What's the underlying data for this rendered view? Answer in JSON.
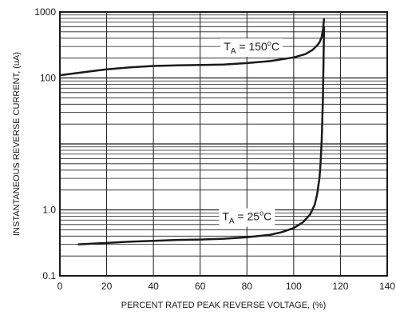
{
  "chart_data": {
    "type": "line",
    "xlabel": "PERCENT RATED PEAK REVERSE VOLTAGE, (%)",
    "ylabel": "INSTANTANEOUS REVERSE CURRENT, (uA)",
    "xlim": [
      0,
      140
    ],
    "ylim": [
      0.1,
      1000
    ],
    "y_scale": "log",
    "grid": true,
    "x_ticks": [
      0,
      20,
      40,
      60,
      80,
      100,
      120,
      140
    ],
    "x_tick_labels": [
      "0",
      "20",
      "40",
      "60",
      "80",
      "100",
      "120",
      "140"
    ],
    "y_ticks": [
      0.1,
      1.0,
      100,
      1000
    ],
    "y_tick_labels": [
      "0.1",
      "1.0",
      "100",
      "1000"
    ],
    "series": [
      {
        "color": "#1a1a1a",
        "x": [
          0,
          10,
          20,
          30,
          40,
          50,
          60,
          70,
          80,
          90,
          100,
          105,
          108,
          110,
          111,
          112,
          112.5,
          113
        ],
        "y": [
          110,
          122,
          135,
          145,
          152,
          155,
          157,
          160,
          168,
          180,
          205,
          230,
          265,
          310,
          345,
          420,
          540,
          780
        ]
      },
      {
        "color": "#1a1a1a",
        "x": [
          8,
          20,
          30,
          40,
          50,
          60,
          70,
          80,
          90,
          95,
          100,
          104,
          107,
          109,
          110,
          111,
          111.5,
          112,
          112.5,
          113
        ],
        "y": [
          0.3,
          0.315,
          0.33,
          0.34,
          0.35,
          0.355,
          0.365,
          0.385,
          0.42,
          0.46,
          0.53,
          0.65,
          0.85,
          1.2,
          1.7,
          3.0,
          5.0,
          12,
          50,
          600
        ]
      }
    ],
    "annotations": [
      {
        "base": "T",
        "sub": "A",
        "eq": " = 150",
        "deg": "o",
        "unit": "C",
        "x": 82,
        "y": 300
      },
      {
        "base": "T",
        "sub": "A",
        "eq": " = 25",
        "deg": "o",
        "unit": "C",
        "x": 80,
        "y": 0.8
      }
    ]
  }
}
